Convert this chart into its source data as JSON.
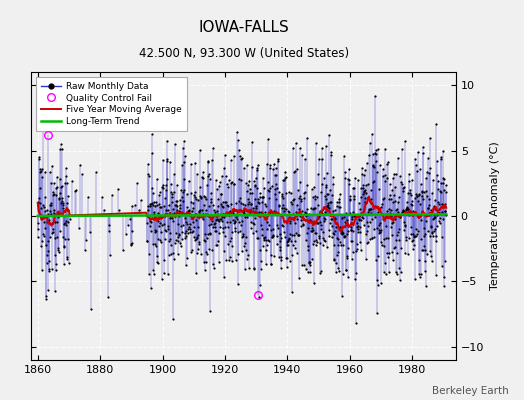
{
  "title": "IOWA-FALLS",
  "subtitle": "42.500 N, 93.300 W (United States)",
  "ylabel": "Temperature Anomaly (°C)",
  "credit": "Berkeley Earth",
  "xlim": [
    1858,
    1994
  ],
  "ylim": [
    -11,
    11
  ],
  "yticks": [
    -10,
    -5,
    0,
    5,
    10
  ],
  "xticks": [
    1860,
    1880,
    1900,
    1920,
    1940,
    1960,
    1980
  ],
  "bg_color": "#f0f0f0",
  "grid_color": "#ffffff",
  "line_color": "#3333cc",
  "ma_color": "#cc0000",
  "trend_color": "#00bb00",
  "qc_color": "#ff00ff",
  "seed": 12345,
  "start_year": 1860.0,
  "noise_std": 2.5,
  "qc_fail_years": [
    1863.25,
    1930.5
  ],
  "qc_fail_vals": [
    6.2,
    -6.0
  ],
  "gap_start": 1870,
  "gap_end": 1895
}
